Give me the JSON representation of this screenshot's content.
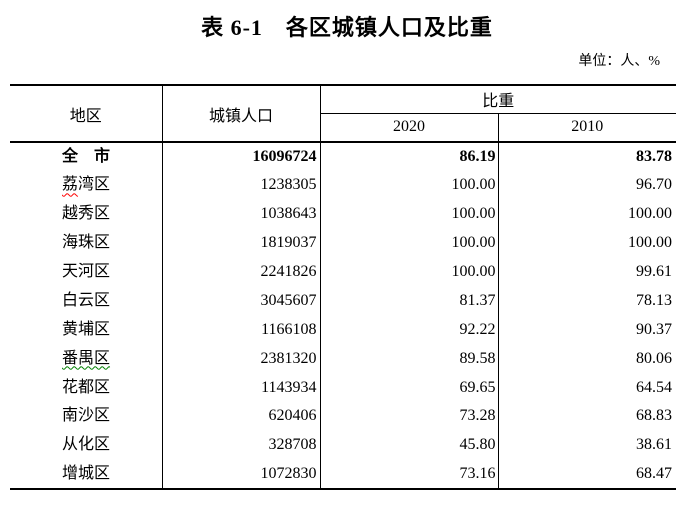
{
  "title": "表 6-1　各区城镇人口及比重",
  "unit_note": "单位：人、%",
  "colors": {
    "border": "#000000",
    "spellcheck_red": "#ff0000",
    "grammar_green": "#008000"
  },
  "table": {
    "headers": {
      "region": "地区",
      "urban_population": "城镇人口",
      "proportion": "比重",
      "year_2020": "2020",
      "year_2010": "2010"
    },
    "rows": [
      {
        "region": "全　市",
        "population": "16096724",
        "ratio_2020": "86.19",
        "ratio_2010": "83.78",
        "bold": true,
        "squiggle": null
      },
      {
        "region": "荔湾区",
        "population": "1238305",
        "ratio_2020": "100.00",
        "ratio_2010": "96.70",
        "bold": false,
        "squiggle": {
          "color": "#ff0000",
          "length": 1
        }
      },
      {
        "region": "越秀区",
        "population": "1038643",
        "ratio_2020": "100.00",
        "ratio_2010": "100.00",
        "bold": false,
        "squiggle": null
      },
      {
        "region": "海珠区",
        "population": "1819037",
        "ratio_2020": "100.00",
        "ratio_2010": "100.00",
        "bold": false,
        "squiggle": null
      },
      {
        "region": "天河区",
        "population": "2241826",
        "ratio_2020": "100.00",
        "ratio_2010": "99.61",
        "bold": false,
        "squiggle": null
      },
      {
        "region": "白云区",
        "population": "3045607",
        "ratio_2020": "81.37",
        "ratio_2010": "78.13",
        "bold": false,
        "squiggle": null
      },
      {
        "region": "黄埔区",
        "population": "1166108",
        "ratio_2020": "92.22",
        "ratio_2010": "90.37",
        "bold": false,
        "squiggle": null
      },
      {
        "region": "番禺区",
        "population": "2381320",
        "ratio_2020": "89.58",
        "ratio_2010": "80.06",
        "bold": false,
        "squiggle": {
          "color": "#008000",
          "length": 3
        }
      },
      {
        "region": "花都区",
        "population": "1143934",
        "ratio_2020": "69.65",
        "ratio_2010": "64.54",
        "bold": false,
        "squiggle": null
      },
      {
        "region": "南沙区",
        "population": "620406",
        "ratio_2020": "73.28",
        "ratio_2010": "68.83",
        "bold": false,
        "squiggle": null
      },
      {
        "region": "从化区",
        "population": "328708",
        "ratio_2020": "45.80",
        "ratio_2010": "38.61",
        "bold": false,
        "squiggle": null
      },
      {
        "region": "增城区",
        "population": "1072830",
        "ratio_2020": "73.16",
        "ratio_2010": "68.47",
        "bold": false,
        "squiggle": null
      }
    ]
  }
}
